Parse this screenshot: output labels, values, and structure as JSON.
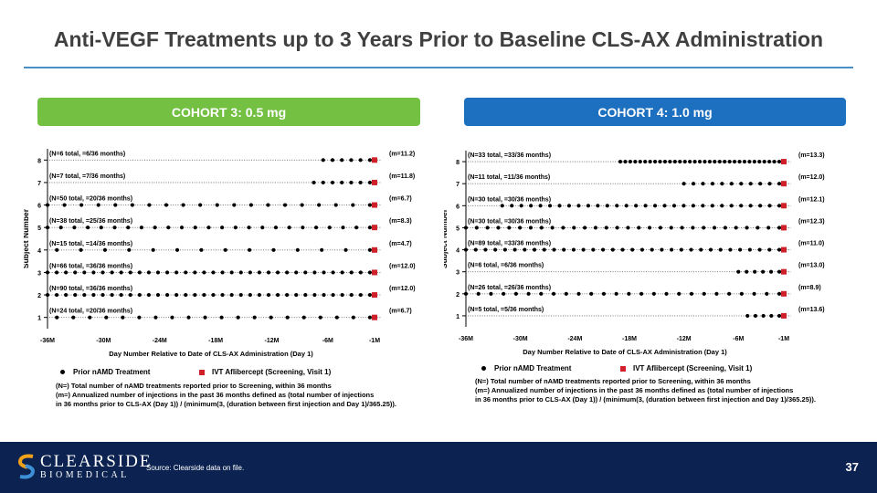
{
  "title": "Anti-VEGF Treatments up to 3 Years Prior to Baseline CLS-AX Administration",
  "colors": {
    "cohort3": "#73c043",
    "cohort4": "#1d6fc0",
    "ivt": "#d0202a",
    "footer": "#0c2351",
    "rule": "#4a90c8"
  },
  "footer": {
    "logo_line1": "CLEARSIDE",
    "logo_line2": "BIOMEDICAL",
    "source": "Source: Clearside data on file.",
    "page_number": "37"
  },
  "chart_data": [
    {
      "type": "scatter",
      "cohort_label": "COHORT 3: 0.5 mg",
      "xlabel": "Day Number Relative to Date of CLS-AX Administration (Day 1)",
      "ylabel": "Subject Number",
      "x_tick_labels": [
        "-36M",
        "-30M",
        "-24M",
        "-18M",
        "-12M",
        "-6M",
        "-1M"
      ],
      "x_tick_months": [
        -36,
        -30,
        -24,
        -18,
        -12,
        -6,
        -1
      ],
      "xlim": [
        -36,
        -1
      ],
      "ylim": [
        0.5,
        8.5
      ],
      "y_ticks": [
        "1",
        "2",
        "3",
        "4",
        "5",
        "6",
        "7",
        "8"
      ],
      "legend": {
        "treatment": "Prior nAMD Treatment",
        "ivt": "IVT Aflibercept (Screening, Visit 1)"
      },
      "notes": [
        "(N=) Total number of nAMD treatments reported prior to Screening, within 36 months",
        "(m=) Annualized number of injections in the past 36 months defined as (total number of injections",
        "in 36 months prior to CLS-AX (Day 1)) / (minimum(3, (duration between first injection and Day 1)/365.25))."
      ],
      "subjects": [
        {
          "subject": 8,
          "n_label": "(N=6 total, =6/36 months)",
          "m_label": "(m=11.2)",
          "n": 6,
          "start": -6.5
        },
        {
          "subject": 7,
          "n_label": "(N=7 total, =7/36 months)",
          "m_label": "(m=11.8)",
          "n": 7,
          "start": -7.5
        },
        {
          "subject": 6,
          "n_label": "(N=50 total, =20/36 months)",
          "m_label": "(m=6.7)",
          "n": 20,
          "start": -36
        },
        {
          "subject": 5,
          "n_label": "(N=38 total, =25/36 months)",
          "m_label": "(m=8.3)",
          "n": 25,
          "start": -36
        },
        {
          "subject": 4,
          "n_label": "(N=15 total, =14/36 months)",
          "m_label": "(m=4.7)",
          "n": 14,
          "start": -35
        },
        {
          "subject": 3,
          "n_label": "(N=66 total, =36/36 months)",
          "m_label": "(m=12.0)",
          "n": 36,
          "start": -36
        },
        {
          "subject": 2,
          "n_label": "(N=90 total, =36/36 months)",
          "m_label": "(m=12.0)",
          "n": 36,
          "start": -36
        },
        {
          "subject": 1,
          "n_label": "(N=24 total, =20/36 months)",
          "m_label": "(m=6.7)",
          "n": 20,
          "start": -35
        }
      ]
    },
    {
      "type": "scatter",
      "cohort_label": "COHORT 4: 1.0 mg",
      "xlabel": "Day Number Relative to Date of CLS-AX Administration (Day 1)",
      "ylabel": "Subject Number",
      "x_tick_labels": [
        "-36M",
        "-30M",
        "-24M",
        "-18M",
        "-12M",
        "-6M",
        "-1M"
      ],
      "x_tick_months": [
        -36,
        -30,
        -24,
        -18,
        -12,
        -6,
        -1
      ],
      "xlim": [
        -36,
        -1
      ],
      "ylim": [
        0.5,
        8.5
      ],
      "y_ticks": [
        "1",
        "2",
        "3",
        "4",
        "5",
        "6",
        "7",
        "8"
      ],
      "legend": {
        "treatment": "Prior nAMD Treatment",
        "ivt": "IVT Aflibercept (Screening, Visit 1)"
      },
      "notes": [
        "(N=) Total number of nAMD treatments reported prior to Screening, within 36 months",
        "(m=) Annualized number of injections in the past 36 months defined as (total number of injections",
        "in 36 months prior to CLS-AX (Day 1)) / (minimum(3, (duration between first injection and Day 1)/365.25))."
      ],
      "subjects": [
        {
          "subject": 8,
          "n_label": "(N=33 total, =33/36 months)",
          "m_label": "(m=13.3)",
          "n": 33,
          "start": -19
        },
        {
          "subject": 7,
          "n_label": "(N=11 total, =11/36 months)",
          "m_label": "(m=12.0)",
          "n": 11,
          "start": -12
        },
        {
          "subject": 6,
          "n_label": "(N=30 total, =30/36 months)",
          "m_label": "(m=12.1)",
          "n": 30,
          "start": -32
        },
        {
          "subject": 5,
          "n_label": "(N=30 total, =30/36 months)",
          "m_label": "(m=12.3)",
          "n": 30,
          "start": -36
        },
        {
          "subject": 4,
          "n_label": "(N=89 total, =33/36 months)",
          "m_label": "(m=11.0)",
          "n": 33,
          "start": -36
        },
        {
          "subject": 3,
          "n_label": "(N=6 total, =6/36 months)",
          "m_label": "(m=13.0)",
          "n": 6,
          "start": -6
        },
        {
          "subject": 2,
          "n_label": "(N=26 total, =26/36 months)",
          "m_label": "(m=8.9)",
          "n": 26,
          "start": -36
        },
        {
          "subject": 1,
          "n_label": "(N=5 total, =5/36 months)",
          "m_label": "(m=13.6)",
          "n": 5,
          "start": -5
        }
      ]
    }
  ]
}
